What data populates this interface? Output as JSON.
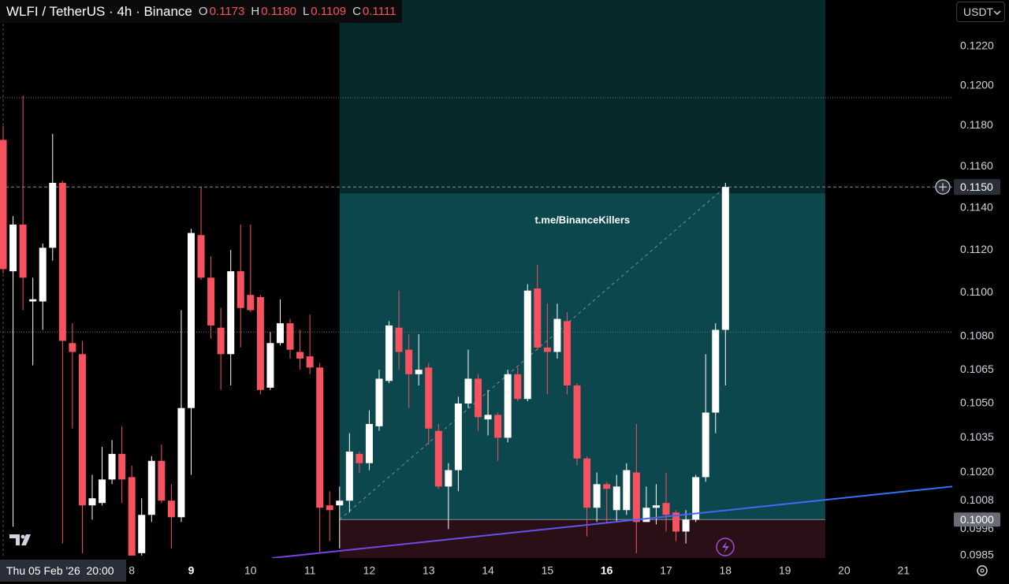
{
  "chart_data": {
    "type": "candlestick",
    "symbol": "WLFI / TetherUS · 4h · Binance",
    "ohlc_legend": [
      {
        "key": "O",
        "value": "0.1173"
      },
      {
        "key": "H",
        "value": "0.1180"
      },
      {
        "key": "L",
        "value": "0.1109"
      },
      {
        "key": "C",
        "value": "0.1111"
      }
    ],
    "currency": "USDT",
    "crosshair_label": "Thu 05 Feb '26  20:00",
    "watermark": "t.me/BinanceKillers",
    "log_scale": true,
    "grid": false,
    "up_color": "#ffffff",
    "down_color": "#f7525f",
    "x": [
      5.8333,
      6,
      6.1667,
      6.3333,
      6.5,
      6.6667,
      6.8333,
      7,
      7.1667,
      7.3333,
      7.5,
      7.6667,
      7.8333,
      8,
      8.1667,
      8.3333,
      8.5,
      8.6667,
      8.8333,
      9,
      9.1667,
      9.3333,
      9.5,
      9.6667,
      9.8333,
      10,
      10.1667,
      10.3333,
      10.5,
      10.6667,
      10.8333,
      11,
      11.1667,
      11.3333,
      11.5,
      11.6667,
      11.8333,
      12,
      12.1667,
      12.3333,
      12.5,
      12.6667,
      12.8333,
      13,
      13.1667,
      13.3333,
      13.5,
      13.6667,
      13.8333,
      14,
      14.1667,
      14.3333,
      14.5,
      14.6667,
      14.8333,
      15,
      15.1667,
      15.3333,
      15.5,
      15.6667,
      15.8333,
      16,
      16.1667,
      16.3333,
      16.5,
      16.6667,
      16.8333,
      17,
      17.1667,
      17.3333,
      17.5,
      17.6667,
      17.8333,
      18
    ],
    "open": [
      0.1173,
      0.111,
      0.1132,
      0.1096,
      0.1096,
      0.1121,
      0.1152,
      0.1077,
      0.1072,
      0.1006,
      0.1007,
      0.1017,
      0.1028,
      0.1018,
      0.0986,
      0.1002,
      0.1025,
      0.1008,
      0.1001,
      0.1048,
      0.1127,
      0.1107,
      0.1084,
      0.1072,
      0.111,
      0.1099,
      0.1098,
      0.1057,
      0.1077,
      0.1086,
      0.1073,
      0.1071,
      0.1066,
      0.1006,
      0.1006,
      0.1008,
      0.1028,
      0.1024,
      0.104,
      0.106,
      0.1084,
      0.1074,
      0.1063,
      0.1066,
      0.1038,
      0.1014,
      0.1021,
      0.105,
      0.1061,
      0.1043,
      0.1045,
      0.1035,
      0.1063,
      0.1052,
      0.1102,
      0.1075,
      0.1073,
      0.1087,
      0.1058,
      0.1026,
      0.1005,
      0.1015,
      0.1004,
      0.1004,
      0.102,
      0.0999,
      0.1005,
      0.1007,
      0.1003,
      0.0995,
      0.1,
      0.1018,
      0.1046,
      0.1083
    ],
    "high": [
      0.118,
      0.1136,
      0.1195,
      0.1107,
      0.1123,
      0.1176,
      0.1153,
      0.1086,
      0.1078,
      0.1019,
      0.1031,
      0.1034,
      0.104,
      0.1023,
      0.1009,
      0.1027,
      0.1032,
      0.1015,
      0.1092,
      0.113,
      0.115,
      0.1117,
      0.1093,
      0.112,
      0.1132,
      0.1132,
      0.1099,
      0.1082,
      0.1097,
      0.1088,
      0.1083,
      0.109,
      0.1068,
      0.1012,
      0.1014,
      0.1037,
      0.1029,
      0.1047,
      0.1065,
      0.1087,
      0.1101,
      0.1081,
      0.1081,
      0.1068,
      0.1041,
      0.1024,
      0.1053,
      0.1074,
      0.1063,
      0.1056,
      0.1046,
      0.1065,
      0.1066,
      0.1104,
      0.1113,
      0.1095,
      0.1095,
      0.1091,
      0.1059,
      0.1027,
      0.102,
      0.1016,
      0.1019,
      0.1024,
      0.1041,
      0.1014,
      0.1015,
      0.102,
      0.1004,
      0.1004,
      0.1019,
      0.1072,
      0.1086,
      0.1152
    ],
    "low": [
      0.1109,
      0.0997,
      0.1092,
      0.1067,
      0.1083,
      0.1115,
      0.099,
      0.1039,
      0.0986,
      0.1,
      0.1006,
      0.1015,
      0.1007,
      0.0985,
      0.0985,
      0.0999,
      0.1007,
      0.0988,
      0.0999,
      0.1019,
      0.1106,
      0.1079,
      0.1056,
      0.1058,
      0.1075,
      0.1091,
      0.1054,
      0.1056,
      0.1076,
      0.107,
      0.1065,
      0.1063,
      0.0986,
      0.0991,
      0.0988,
      0.1003,
      0.102,
      0.1021,
      0.1038,
      0.1059,
      0.1065,
      0.1048,
      0.1058,
      0.1032,
      0.1013,
      0.0996,
      0.1012,
      0.1048,
      0.1038,
      0.1036,
      0.1025,
      0.1033,
      0.1051,
      0.1051,
      0.1074,
      0.1054,
      0.107,
      0.1054,
      0.1023,
      0.0993,
      0.0999,
      0.0999,
      0.0999,
      0.1002,
      0.0986,
      0.0999,
      0.0998,
      0.0995,
      0.0991,
      0.099,
      0.0999,
      0.1016,
      0.1037,
      0.1058
    ],
    "close": [
      0.1111,
      0.1132,
      0.1107,
      0.1097,
      0.1121,
      0.1152,
      0.1078,
      0.1073,
      0.1006,
      0.1009,
      0.1017,
      0.1028,
      0.1017,
      0.0985,
      0.1002,
      0.1025,
      0.1008,
      0.1001,
      0.1048,
      0.1128,
      0.1107,
      0.1085,
      0.1072,
      0.111,
      0.1093,
      0.1092,
      0.1056,
      0.1077,
      0.1086,
      0.1074,
      0.107,
      0.1066,
      0.1005,
      0.1004,
      0.1008,
      0.1029,
      0.1024,
      0.1041,
      0.1061,
      0.1085,
      0.1073,
      0.1063,
      0.1065,
      0.1039,
      0.1014,
      0.1021,
      0.105,
      0.1061,
      0.1044,
      0.1045,
      0.1035,
      0.1063,
      0.1052,
      0.1101,
      0.1075,
      0.1073,
      0.1088,
      0.1058,
      0.1026,
      0.1005,
      0.1015,
      0.1013,
      0.1014,
      0.1021,
      0.0999,
      0.1005,
      0.1006,
      0.1002,
      0.0995,
      0.1,
      0.1018,
      0.1046,
      0.1083,
      0.115
    ],
    "xlim": [
      5.78,
      21.82
    ],
    "xticks": [
      8,
      9,
      10,
      11,
      12,
      13,
      14,
      15,
      16,
      17,
      18,
      19,
      20,
      21
    ],
    "ylim": [
      0.0984,
      0.1244
    ],
    "yticks": [
      {
        "value": 0.122,
        "label": "0.1220"
      },
      {
        "value": 0.12,
        "label": "0.1200"
      },
      {
        "value": 0.118,
        "label": "0.1180"
      },
      {
        "value": 0.116,
        "label": "0.1160"
      },
      {
        "value": 0.114,
        "label": "0.1140"
      },
      {
        "value": 0.112,
        "label": "0.1120"
      },
      {
        "value": 0.11,
        "label": "0.1100"
      },
      {
        "value": 0.108,
        "label": "0.1080"
      },
      0.1065,
      {
        "value": 0.105,
        "label": "0.1050"
      },
      0.1035,
      {
        "value": 0.102,
        "label": "0.1020"
      },
      0.1008,
      0.0996,
      0.0985
    ],
    "last_price": {
      "value": 0.115,
      "label": "0.1150"
    },
    "levels": [
      0.1194,
      0.1082
    ],
    "position": {
      "start": 11.5,
      "end": 19.68,
      "entry": {
        "value": 0.1,
        "label": "0.1000"
      },
      "target": 0.1147,
      "stop": 0.0984
    },
    "trendline": {
      "x": [
        10.36,
        21.82
      ],
      "y": [
        0.0984,
        0.1014
      ]
    }
  }
}
